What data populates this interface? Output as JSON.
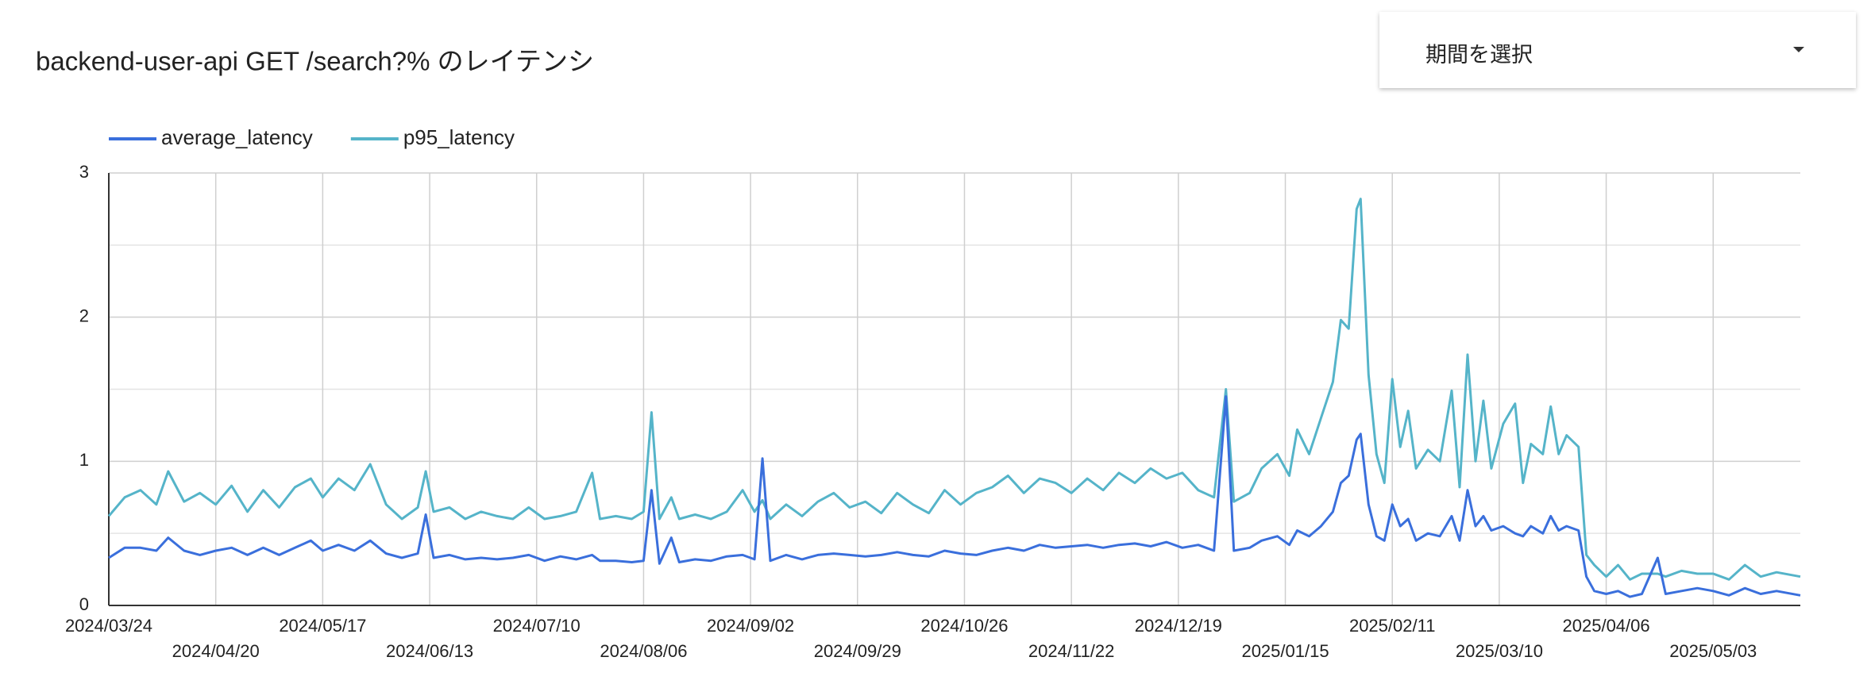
{
  "dropdown": {
    "label": "期間を選択"
  },
  "chart_data": {
    "type": "line",
    "title": "backend-user-api GET /search?% のレイテンシ",
    "x": [
      "2024/03/24",
      "2024/03/28",
      "2024/04/01",
      "2024/04/05",
      "2024/04/08",
      "2024/04/12",
      "2024/04/16",
      "2024/04/20",
      "2024/04/24",
      "2024/04/28",
      "2024/05/02",
      "2024/05/06",
      "2024/05/10",
      "2024/05/14",
      "2024/05/17",
      "2024/05/21",
      "2024/05/25",
      "2024/05/29",
      "2024/06/02",
      "2024/06/06",
      "2024/06/10",
      "2024/06/12",
      "2024/06/14",
      "2024/06/18",
      "2024/06/22",
      "2024/06/26",
      "2024/06/30",
      "2024/07/04",
      "2024/07/08",
      "2024/07/12",
      "2024/07/16",
      "2024/07/20",
      "2024/07/24",
      "2024/07/26",
      "2024/07/30",
      "2024/08/03",
      "2024/08/06",
      "2024/08/08",
      "2024/08/10",
      "2024/08/13",
      "2024/08/15",
      "2024/08/19",
      "2024/08/23",
      "2024/08/27",
      "2024/08/31",
      "2024/09/03",
      "2024/09/05",
      "2024/09/07",
      "2024/09/11",
      "2024/09/15",
      "2024/09/19",
      "2024/09/23",
      "2024/09/27",
      "2024/10/01",
      "2024/10/05",
      "2024/10/09",
      "2024/10/13",
      "2024/10/17",
      "2024/10/21",
      "2024/10/25",
      "2024/10/29",
      "2024/11/02",
      "2024/11/06",
      "2024/11/10",
      "2024/11/14",
      "2024/11/18",
      "2024/11/22",
      "2024/11/26",
      "2024/11/30",
      "2024/12/04",
      "2024/12/08",
      "2024/12/12",
      "2024/12/16",
      "2024/12/20",
      "2024/12/24",
      "2024/12/28",
      "2024/12/31",
      "2025/01/02",
      "2025/01/06",
      "2025/01/09",
      "2025/01/13",
      "2025/01/16",
      "2025/01/18",
      "2025/01/21",
      "2025/01/24",
      "2025/01/27",
      "2025/01/29",
      "2025/01/31",
      "2025/02/02",
      "2025/02/03",
      "2025/02/05",
      "2025/02/07",
      "2025/02/09",
      "2025/02/11",
      "2025/02/13",
      "2025/02/15",
      "2025/02/17",
      "2025/02/20",
      "2025/02/23",
      "2025/02/26",
      "2025/02/28",
      "2025/03/02",
      "2025/03/04",
      "2025/03/06",
      "2025/03/08",
      "2025/03/11",
      "2025/03/14",
      "2025/03/16",
      "2025/03/18",
      "2025/03/21",
      "2025/03/23",
      "2025/03/25",
      "2025/03/27",
      "2025/03/30",
      "2025/04/01",
      "2025/04/03",
      "2025/04/06",
      "2025/04/09",
      "2025/04/12",
      "2025/04/15",
      "2025/04/19",
      "2025/04/21",
      "2025/04/25",
      "2025/04/29",
      "2025/05/03",
      "2025/05/07",
      "2025/05/11",
      "2025/05/15",
      "2025/05/19",
      "2025/05/25"
    ],
    "series": [
      {
        "name": "average_latency",
        "color": "#3a6fdc",
        "values": [
          0.33,
          0.4,
          0.4,
          0.38,
          0.47,
          0.38,
          0.35,
          0.38,
          0.4,
          0.35,
          0.4,
          0.35,
          0.4,
          0.45,
          0.38,
          0.42,
          0.38,
          0.45,
          0.36,
          0.33,
          0.36,
          0.63,
          0.33,
          0.35,
          0.32,
          0.33,
          0.32,
          0.33,
          0.35,
          0.31,
          0.34,
          0.32,
          0.35,
          0.31,
          0.31,
          0.3,
          0.31,
          0.8,
          0.29,
          0.47,
          0.3,
          0.32,
          0.31,
          0.34,
          0.35,
          0.32,
          1.02,
          0.31,
          0.35,
          0.32,
          0.35,
          0.36,
          0.35,
          0.34,
          0.35,
          0.37,
          0.35,
          0.34,
          0.38,
          0.36,
          0.35,
          0.38,
          0.4,
          0.38,
          0.42,
          0.4,
          0.41,
          0.42,
          0.4,
          0.42,
          0.43,
          0.41,
          0.44,
          0.4,
          0.42,
          0.38,
          1.45,
          0.38,
          0.4,
          0.45,
          0.48,
          0.42,
          0.52,
          0.48,
          0.55,
          0.65,
          0.85,
          0.9,
          1.15,
          1.19,
          0.7,
          0.48,
          0.45,
          0.7,
          0.55,
          0.6,
          0.45,
          0.5,
          0.48,
          0.62,
          0.45,
          0.8,
          0.55,
          0.62,
          0.52,
          0.55,
          0.5,
          0.48,
          0.55,
          0.5,
          0.62,
          0.52,
          0.55,
          0.52,
          0.2,
          0.1,
          0.08,
          0.1,
          0.06,
          0.08,
          0.33,
          0.08,
          0.1,
          0.12,
          0.1,
          0.07,
          0.12,
          0.08,
          0.1,
          0.07
        ]
      },
      {
        "name": "p95_latency",
        "color": "#55b4c9",
        "values": [
          0.62,
          0.75,
          0.8,
          0.7,
          0.93,
          0.72,
          0.78,
          0.7,
          0.83,
          0.65,
          0.8,
          0.68,
          0.82,
          0.88,
          0.75,
          0.88,
          0.8,
          0.98,
          0.7,
          0.6,
          0.68,
          0.93,
          0.65,
          0.68,
          0.6,
          0.65,
          0.62,
          0.6,
          0.68,
          0.6,
          0.62,
          0.65,
          0.92,
          0.6,
          0.62,
          0.6,
          0.65,
          1.34,
          0.6,
          0.75,
          0.6,
          0.63,
          0.6,
          0.65,
          0.8,
          0.65,
          0.73,
          0.6,
          0.7,
          0.62,
          0.72,
          0.78,
          0.68,
          0.72,
          0.64,
          0.78,
          0.7,
          0.64,
          0.8,
          0.7,
          0.78,
          0.82,
          0.9,
          0.78,
          0.88,
          0.85,
          0.78,
          0.88,
          0.8,
          0.92,
          0.85,
          0.95,
          0.88,
          0.92,
          0.8,
          0.75,
          1.5,
          0.72,
          0.78,
          0.95,
          1.05,
          0.9,
          1.22,
          1.05,
          1.3,
          1.55,
          1.98,
          1.92,
          2.75,
          2.82,
          1.6,
          1.05,
          0.85,
          1.57,
          1.1,
          1.35,
          0.95,
          1.08,
          1.0,
          1.49,
          0.82,
          1.74,
          1.0,
          1.42,
          0.95,
          1.26,
          1.4,
          0.85,
          1.12,
          1.05,
          1.38,
          1.05,
          1.18,
          1.1,
          0.35,
          0.28,
          0.2,
          0.28,
          0.18,
          0.22,
          0.22,
          0.2,
          0.24,
          0.22,
          0.22,
          0.18,
          0.28,
          0.2,
          0.23,
          0.2
        ]
      }
    ],
    "xlim": [
      "2024/03/24",
      "2025/05/25"
    ],
    "xticks": [
      "2024/03/24",
      "2024/04/20",
      "2024/05/17",
      "2024/06/13",
      "2024/07/10",
      "2024/08/06",
      "2024/09/02",
      "2024/09/29",
      "2024/10/26",
      "2024/11/22",
      "2024/12/19",
      "2025/01/15",
      "2025/02/11",
      "2025/03/10",
      "2025/04/06",
      "2025/05/03"
    ],
    "ylim": [
      0,
      3
    ],
    "yticks": [
      0,
      1,
      2,
      3
    ],
    "grid": true,
    "legend": "top-left"
  }
}
